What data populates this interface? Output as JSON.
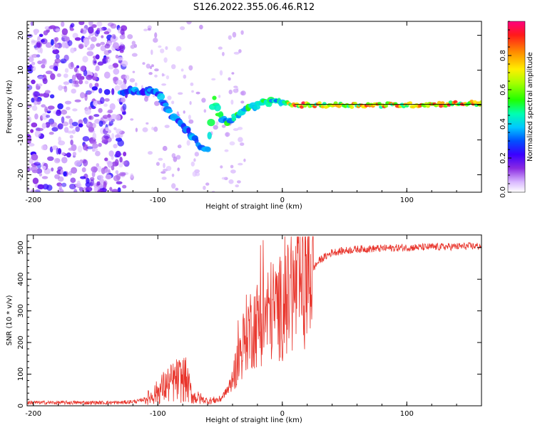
{
  "title": "S126.2022.355.06.46.R12",
  "chart_data": [
    {
      "type": "heatmap",
      "xlabel": "Height of straight line (km)",
      "ylabel": "Frequency (Hz)",
      "xlim": [
        -205,
        160
      ],
      "ylim": [
        -25,
        24
      ],
      "xticks": [
        -200,
        -100,
        0,
        100
      ],
      "yticks": [
        -20,
        -10,
        0,
        10,
        20
      ],
      "ridge": [
        {
          "x": -130,
          "y": 4
        },
        {
          "x": -120,
          "y": 4
        },
        {
          "x": -110,
          "y": 4
        },
        {
          "x": -100,
          "y": 3.5
        },
        {
          "x": -95,
          "y": 1
        },
        {
          "x": -90,
          "y": -3
        },
        {
          "x": -85,
          "y": -4
        },
        {
          "x": -80,
          "y": -6
        },
        {
          "x": -75,
          "y": -8
        },
        {
          "x": -70,
          "y": -10
        },
        {
          "x": -65,
          "y": -12
        },
        {
          "x": -60,
          "y": -13
        },
        {
          "x": -55,
          "y": 2
        },
        {
          "x": -50,
          "y": -3
        },
        {
          "x": -45,
          "y": -5
        },
        {
          "x": -40,
          "y": -4
        },
        {
          "x": -30,
          "y": -1
        },
        {
          "x": -20,
          "y": 0
        },
        {
          "x": -10,
          "y": 1
        },
        {
          "x": 0,
          "y": 0.5
        },
        {
          "x": 10,
          "y": 0
        },
        {
          "x": 50,
          "y": 0
        },
        {
          "x": 100,
          "y": 0
        },
        {
          "x": 150,
          "y": 0.5
        }
      ],
      "colorbar": {
        "label": "Normalized spectral amplitude",
        "range": [
          0.0,
          1.0
        ],
        "ticks": [
          0.0,
          0.2,
          0.4,
          0.6,
          0.8
        ]
      }
    },
    {
      "type": "line",
      "xlabel": "Height of straight line (km)",
      "ylabel": "SNR (10 * v/v)",
      "xlim": [
        -205,
        160
      ],
      "ylim": [
        0,
        540
      ],
      "xticks": [
        -200,
        -100,
        0,
        100
      ],
      "yticks": [
        0,
        100,
        200,
        300,
        400,
        500
      ],
      "series_color": "#e8332a",
      "envelope": [
        {
          "x": -205,
          "y": 10
        },
        {
          "x": -130,
          "y": 10
        },
        {
          "x": -115,
          "y": 15
        },
        {
          "x": -105,
          "y": 30
        },
        {
          "x": -95,
          "y": 60
        },
        {
          "x": -85,
          "y": 80
        },
        {
          "x": -78,
          "y": 85
        },
        {
          "x": -72,
          "y": 30
        },
        {
          "x": -60,
          "y": 15
        },
        {
          "x": -50,
          "y": 20
        },
        {
          "x": -42,
          "y": 60
        },
        {
          "x": -35,
          "y": 150
        },
        {
          "x": -28,
          "y": 240
        },
        {
          "x": -20,
          "y": 260
        },
        {
          "x": -10,
          "y": 300
        },
        {
          "x": 0,
          "y": 310
        },
        {
          "x": 8,
          "y": 350
        },
        {
          "x": 15,
          "y": 380
        },
        {
          "x": 22,
          "y": 420
        },
        {
          "x": 30,
          "y": 460
        },
        {
          "x": 40,
          "y": 485
        },
        {
          "x": 60,
          "y": 495
        },
        {
          "x": 100,
          "y": 500
        },
        {
          "x": 160,
          "y": 505
        }
      ]
    }
  ]
}
